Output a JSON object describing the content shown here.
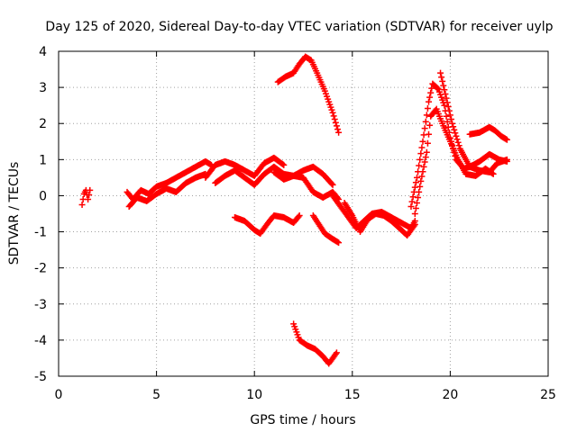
{
  "chart_data": {
    "type": "scatter",
    "title": "Day 125 of 2020, Sidereal Day-to-day VTEC variation (SDTVAR) for receiver uylp",
    "xlabel": "GPS time / hours",
    "ylabel": "SDTVAR / TECUs",
    "xlim": [
      0,
      25
    ],
    "ylim": [
      -5,
      4
    ],
    "xticks": [
      0,
      5,
      10,
      15,
      20,
      25
    ],
    "yticks": [
      -5,
      -4,
      -3,
      -2,
      -1,
      0,
      1,
      2,
      3,
      4
    ],
    "xtick_labels": [
      "0",
      "5",
      "10",
      "15",
      "20",
      "25"
    ],
    "ytick_labels": [
      "-5",
      "-4",
      "-3",
      "-2",
      "-1",
      "0",
      "1",
      "2",
      "3",
      "4"
    ],
    "grid": true,
    "marker": "+",
    "color": "#ff0000",
    "series": [
      {
        "name": "segment-1",
        "x": [
          1.2,
          1.3,
          1.4,
          1.5,
          1.6
        ],
        "y": [
          -0.25,
          0.05,
          0.15,
          -0.1,
          0.15
        ]
      },
      {
        "name": "segment-2",
        "x": [
          3.5,
          3.8,
          4.2,
          4.6,
          5.0,
          5.5,
          6.0,
          6.5,
          7.0,
          7.5,
          7.8
        ],
        "y": [
          0.1,
          -0.1,
          0.15,
          0.05,
          0.25,
          0.35,
          0.5,
          0.65,
          0.8,
          0.95,
          0.85
        ]
      },
      {
        "name": "segment-3",
        "x": [
          3.6,
          4.0,
          4.5,
          5.0,
          5.5,
          6.0,
          6.5,
          7.0,
          7.5
        ],
        "y": [
          -0.3,
          -0.05,
          -0.15,
          0.05,
          0.2,
          0.1,
          0.35,
          0.5,
          0.6
        ]
      },
      {
        "name": "segment-4",
        "x": [
          7.5,
          8.0,
          8.5,
          9.0,
          9.5,
          10.0,
          10.5,
          11.0,
          11.5
        ],
        "y": [
          0.5,
          0.85,
          0.95,
          0.85,
          0.7,
          0.55,
          0.9,
          1.05,
          0.85
        ]
      },
      {
        "name": "segment-5",
        "x": [
          8.0,
          8.5,
          9.0,
          9.5,
          10.0,
          10.5,
          11.0,
          11.5,
          12.0,
          12.5,
          13.0,
          13.5,
          14.0
        ],
        "y": [
          0.35,
          0.55,
          0.7,
          0.5,
          0.3,
          0.6,
          0.8,
          0.6,
          0.55,
          0.7,
          0.8,
          0.6,
          0.3
        ]
      },
      {
        "name": "segment-6",
        "x": [
          11.0,
          11.5,
          12.0,
          12.5,
          13.0,
          13.5,
          14.0,
          14.3
        ],
        "y": [
          0.65,
          0.45,
          0.55,
          0.5,
          0.1,
          -0.05,
          0.1,
          -0.1
        ]
      },
      {
        "name": "segment-7",
        "x": [
          9.0,
          9.5,
          10.0,
          10.3,
          10.7,
          11.0,
          11.5,
          12.0,
          12.3
        ],
        "y": [
          -0.6,
          -0.7,
          -0.95,
          -1.05,
          -0.75,
          -0.55,
          -0.6,
          -0.75,
          -0.55
        ]
      },
      {
        "name": "segment-8",
        "x": [
          11.2,
          11.6,
          12.0,
          12.3,
          12.6,
          12.9,
          13.2,
          13.6,
          14.0,
          14.3
        ],
        "y": [
          3.15,
          3.3,
          3.4,
          3.65,
          3.85,
          3.75,
          3.4,
          2.9,
          2.3,
          1.75
        ]
      },
      {
        "name": "segment-9",
        "x": [
          13.0,
          13.3,
          13.6,
          14.0,
          14.3
        ],
        "y": [
          -0.55,
          -0.8,
          -1.05,
          -1.2,
          -1.3
        ]
      },
      {
        "name": "segment-10",
        "x": [
          12.0,
          12.3,
          12.7,
          13.1,
          13.5,
          13.8,
          14.2
        ],
        "y": [
          -3.55,
          -4.0,
          -4.15,
          -4.25,
          -4.45,
          -4.65,
          -4.35
        ]
      },
      {
        "name": "segment-11",
        "x": [
          14.0,
          14.4,
          14.8,
          15.2,
          15.5,
          16.0,
          16.5,
          17.0,
          17.5,
          18.0,
          18.2
        ],
        "y": [
          0.0,
          -0.3,
          -0.6,
          -0.9,
          -0.75,
          -0.5,
          -0.45,
          -0.6,
          -0.75,
          -0.9,
          -0.7
        ]
      },
      {
        "name": "segment-12",
        "x": [
          14.6,
          15.0,
          15.4,
          15.8,
          16.2,
          16.6,
          17.0,
          17.4,
          17.8,
          18.2
        ],
        "y": [
          -0.2,
          -0.55,
          -1.0,
          -0.65,
          -0.5,
          -0.55,
          -0.7,
          -0.9,
          -1.1,
          -0.8
        ]
      },
      {
        "name": "segment-13",
        "x": [
          18.0,
          18.3,
          18.6,
          18.9,
          19.1,
          19.4,
          19.7,
          20.0,
          20.3,
          20.7,
          21.0,
          21.5,
          22.0,
          22.5,
          22.9
        ],
        "y": [
          -0.3,
          0.5,
          1.5,
          2.6,
          3.1,
          2.95,
          2.5,
          1.6,
          1.0,
          0.75,
          0.8,
          0.95,
          1.15,
          1.0,
          0.95
        ]
      },
      {
        "name": "segment-14",
        "x": [
          18.2,
          18.5,
          18.8,
          19.0,
          19.3,
          19.6,
          20.0,
          20.4,
          20.8,
          21.3,
          21.8,
          22.2
        ],
        "y": [
          -0.5,
          0.4,
          1.2,
          2.2,
          2.4,
          2.0,
          1.5,
          1.0,
          0.6,
          0.55,
          0.75,
          0.6
        ]
      },
      {
        "name": "segment-15",
        "x": [
          19.5,
          19.8,
          20.1,
          20.5,
          21.0,
          21.5,
          22.0,
          22.4,
          22.9
        ],
        "y": [
          3.4,
          2.7,
          2.0,
          1.3,
          0.8,
          0.7,
          0.65,
          0.9,
          1.0
        ]
      },
      {
        "name": "segment-16",
        "x": [
          21.0,
          21.5,
          22.0,
          22.3,
          22.6,
          22.9
        ],
        "y": [
          1.7,
          1.75,
          1.9,
          1.8,
          1.65,
          1.55
        ]
      }
    ]
  }
}
